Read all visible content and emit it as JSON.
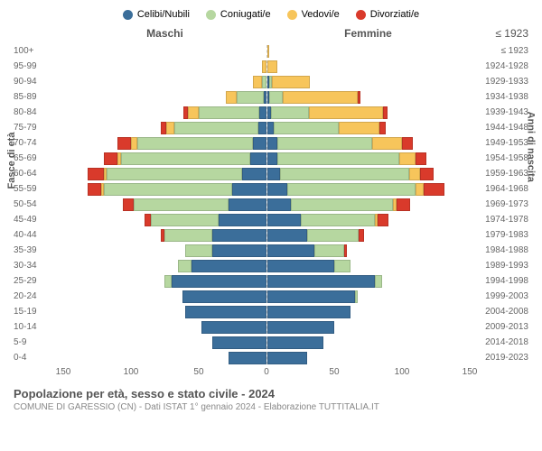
{
  "title": "Popolazione per età, sesso e stato civile - 2024",
  "subtitle": "COMUNE DI GARESSIO (CN) - Dati ISTAT 1° gennaio 2024 - Elaborazione TUTTITALIA.IT",
  "legend": [
    {
      "label": "Celibi/Nubili",
      "color": "#3b6e9a"
    },
    {
      "label": "Coniugati/e",
      "color": "#b6d7a0"
    },
    {
      "label": "Vedovi/e",
      "color": "#f7c55b"
    },
    {
      "label": "Divorziati/e",
      "color": "#d93a2b"
    }
  ],
  "headers": {
    "male": "Maschi",
    "female": "Femmine",
    "right_top": "≤ 1923"
  },
  "axis": {
    "left_label": "Fasce di età",
    "right_label": "Anni di nascita",
    "x_max": 150,
    "x_ticks": [
      150,
      100,
      50,
      0,
      50,
      100,
      150
    ]
  },
  "colors": {
    "background": "#ffffff",
    "grid": "#dddddd",
    "text": "#666666"
  },
  "rows": [
    {
      "age": "100+",
      "year": "≤ 1923",
      "m": [
        0,
        0,
        0,
        0
      ],
      "f": [
        0,
        0,
        2,
        0
      ]
    },
    {
      "age": "95-99",
      "year": "1924-1928",
      "m": [
        0,
        0,
        3,
        0
      ],
      "f": [
        0,
        0,
        8,
        0
      ]
    },
    {
      "age": "90-94",
      "year": "1929-1933",
      "m": [
        0,
        3,
        7,
        0
      ],
      "f": [
        2,
        2,
        28,
        0
      ]
    },
    {
      "age": "85-89",
      "year": "1934-1938",
      "m": [
        2,
        20,
        8,
        0
      ],
      "f": [
        2,
        10,
        55,
        2
      ]
    },
    {
      "age": "80-84",
      "year": "1939-1943",
      "m": [
        5,
        45,
        8,
        3
      ],
      "f": [
        3,
        28,
        55,
        3
      ]
    },
    {
      "age": "75-79",
      "year": "1944-1948",
      "m": [
        6,
        62,
        6,
        4
      ],
      "f": [
        5,
        48,
        30,
        5
      ]
    },
    {
      "age": "70-74",
      "year": "1949-1953",
      "m": [
        10,
        85,
        5,
        10
      ],
      "f": [
        8,
        70,
        22,
        8
      ]
    },
    {
      "age": "65-69",
      "year": "1954-1958",
      "m": [
        12,
        95,
        3,
        10
      ],
      "f": [
        8,
        90,
        12,
        8
      ]
    },
    {
      "age": "60-64",
      "year": "1959-1963",
      "m": [
        18,
        100,
        2,
        12
      ],
      "f": [
        10,
        95,
        8,
        10
      ]
    },
    {
      "age": "55-59",
      "year": "1964-1968",
      "m": [
        25,
        95,
        2,
        10
      ],
      "f": [
        15,
        95,
        6,
        15
      ]
    },
    {
      "age": "50-54",
      "year": "1969-1973",
      "m": [
        28,
        70,
        0,
        8
      ],
      "f": [
        18,
        75,
        3,
        10
      ]
    },
    {
      "age": "45-49",
      "year": "1974-1978",
      "m": [
        35,
        50,
        0,
        5
      ],
      "f": [
        25,
        55,
        2,
        8
      ]
    },
    {
      "age": "40-44",
      "year": "1979-1983",
      "m": [
        40,
        35,
        0,
        3
      ],
      "f": [
        30,
        38,
        0,
        4
      ]
    },
    {
      "age": "35-39",
      "year": "1984-1988",
      "m": [
        40,
        20,
        0,
        0
      ],
      "f": [
        35,
        22,
        0,
        2
      ]
    },
    {
      "age": "30-34",
      "year": "1989-1993",
      "m": [
        55,
        10,
        0,
        0
      ],
      "f": [
        50,
        12,
        0,
        0
      ]
    },
    {
      "age": "25-29",
      "year": "1994-1998",
      "m": [
        70,
        5,
        0,
        0
      ],
      "f": [
        80,
        5,
        0,
        0
      ]
    },
    {
      "age": "20-24",
      "year": "1999-2003",
      "m": [
        62,
        0,
        0,
        0
      ],
      "f": [
        65,
        2,
        0,
        0
      ]
    },
    {
      "age": "15-19",
      "year": "2004-2008",
      "m": [
        60,
        0,
        0,
        0
      ],
      "f": [
        62,
        0,
        0,
        0
      ]
    },
    {
      "age": "10-14",
      "year": "2009-2013",
      "m": [
        48,
        0,
        0,
        0
      ],
      "f": [
        50,
        0,
        0,
        0
      ]
    },
    {
      "age": "5-9",
      "year": "2014-2018",
      "m": [
        40,
        0,
        0,
        0
      ],
      "f": [
        42,
        0,
        0,
        0
      ]
    },
    {
      "age": "0-4",
      "year": "2019-2023",
      "m": [
        28,
        0,
        0,
        0
      ],
      "f": [
        30,
        0,
        0,
        0
      ]
    }
  ]
}
